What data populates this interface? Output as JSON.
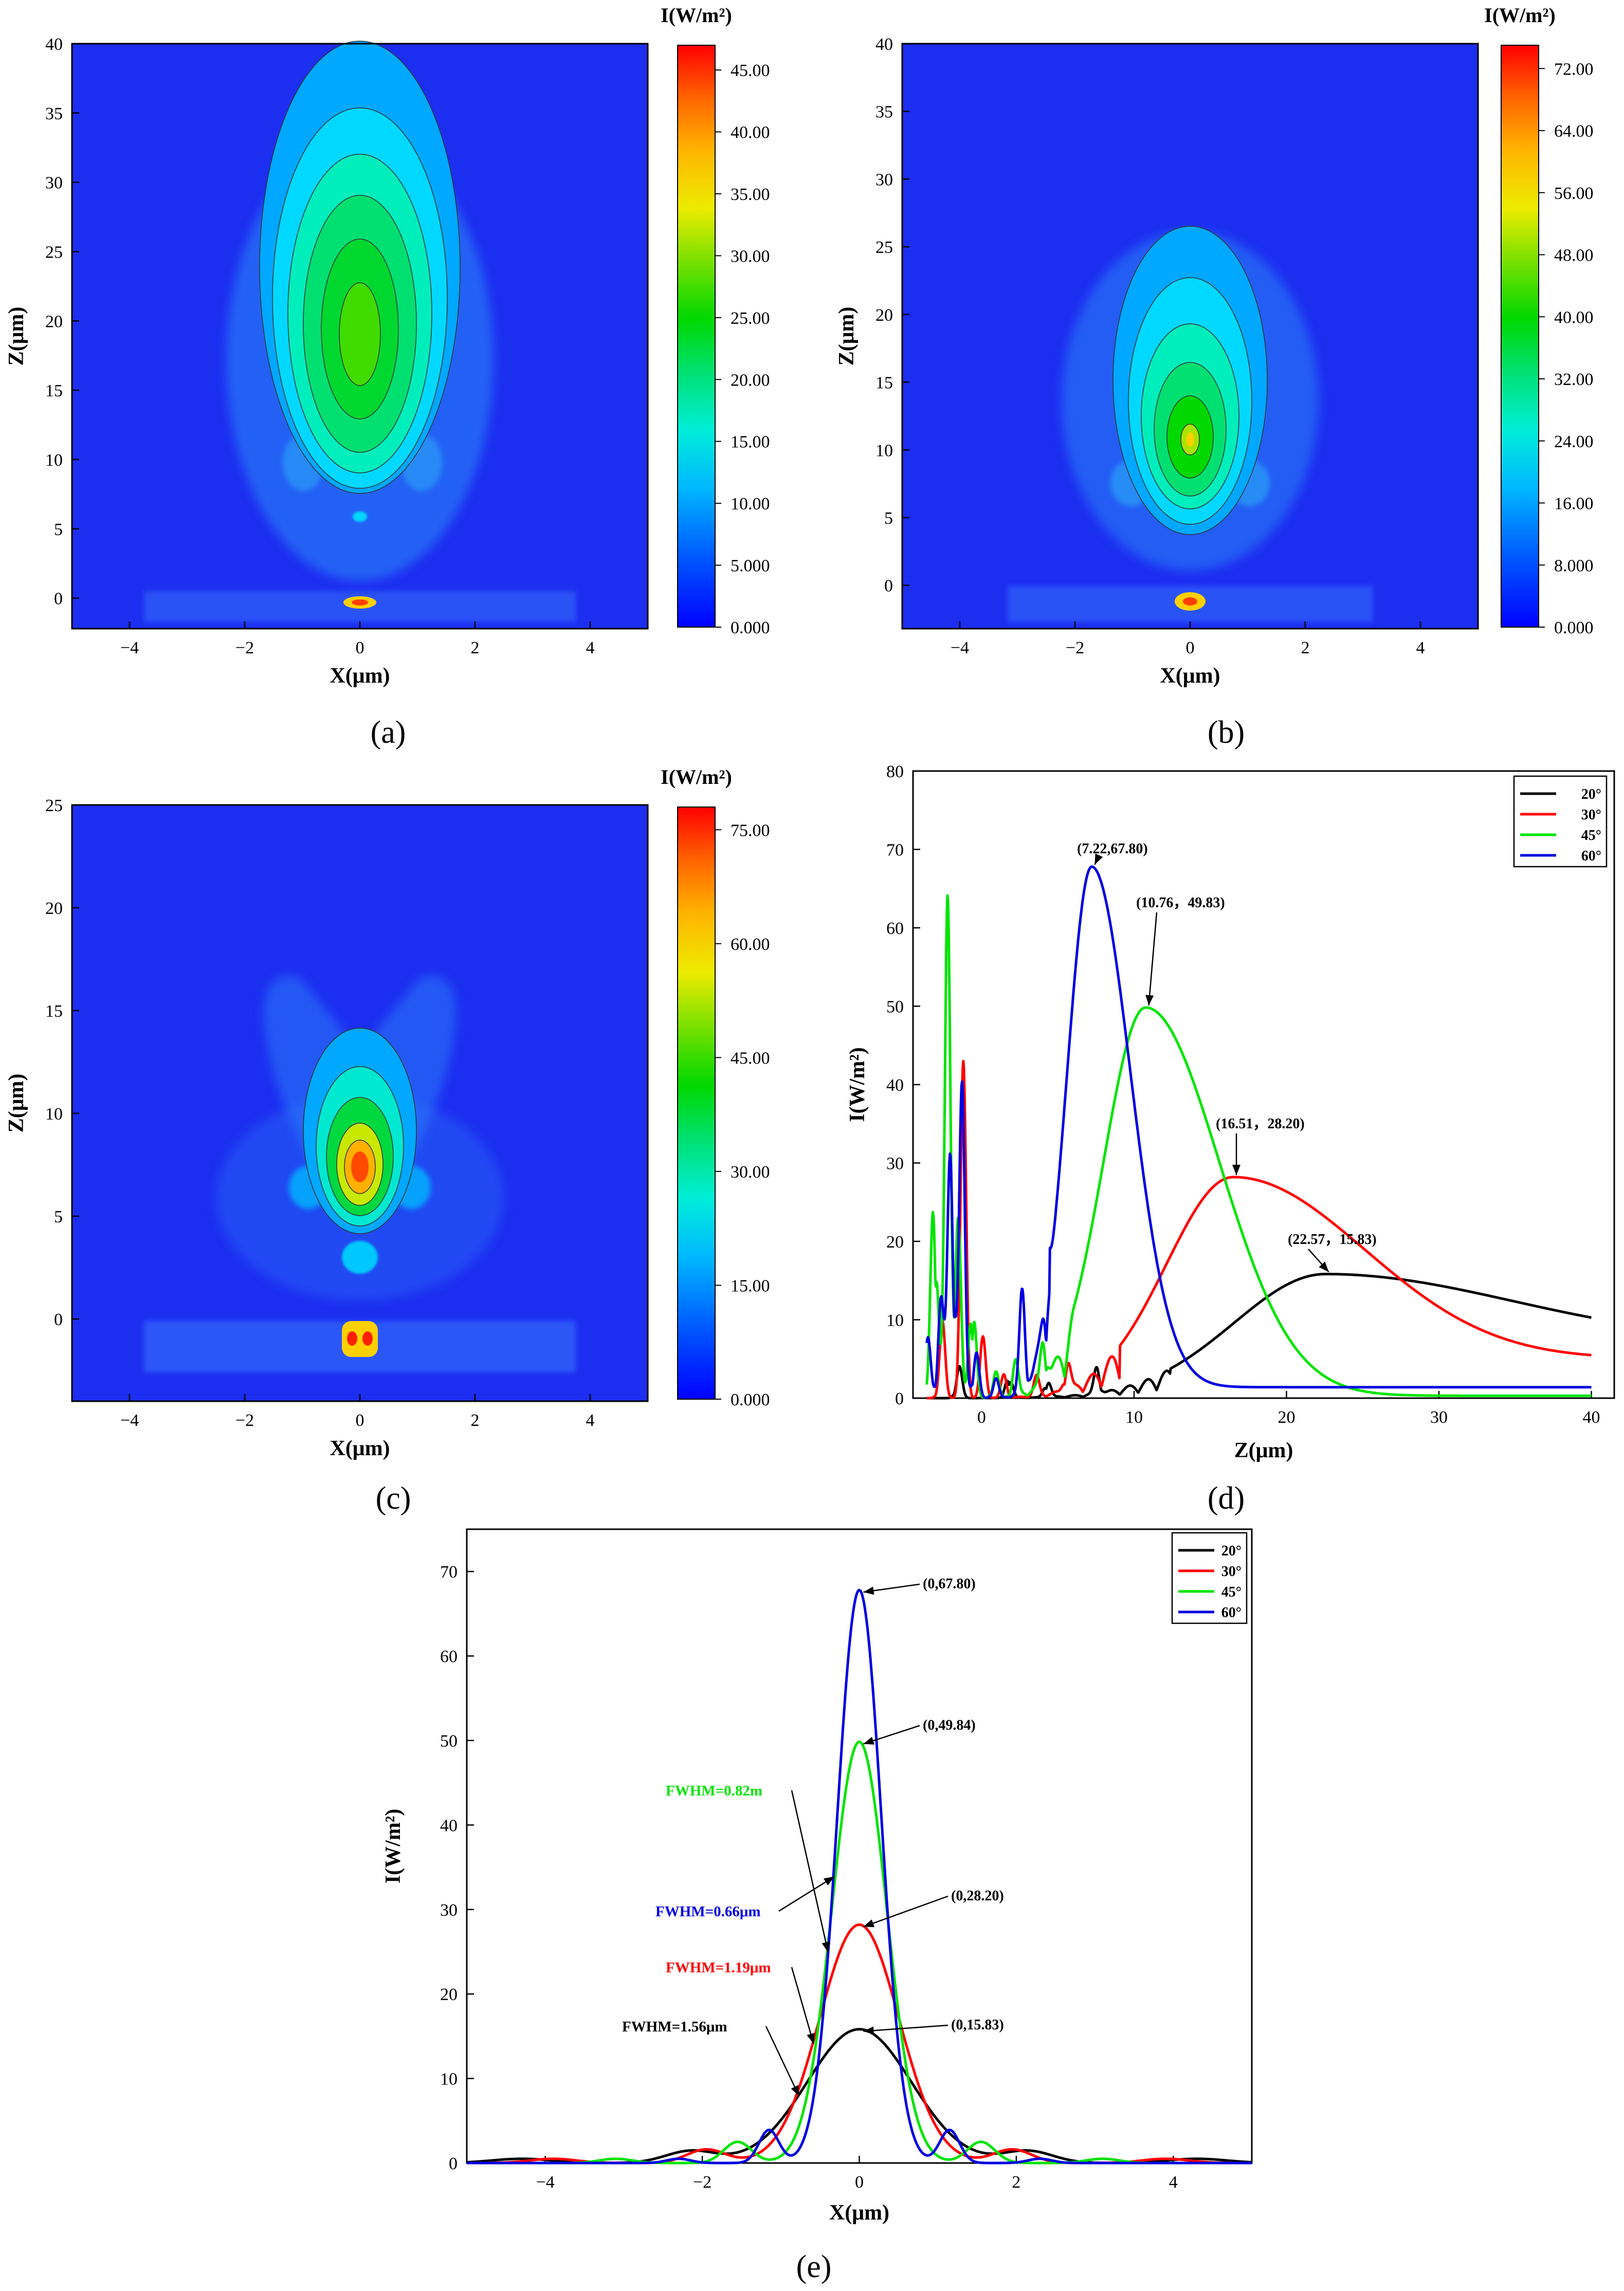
{
  "colors": {
    "axis": "#000000",
    "series_20": "#000000",
    "series_30": "#ff0000",
    "series_45": "#00e400",
    "series_60": "#0000e0",
    "heatmap_background": "#1c2ef0"
  },
  "chart_data": [
    {
      "type": "heatmap",
      "panel_label": "(a)",
      "xlabel": "X(μm)",
      "ylabel": "Z(μm)",
      "xlim": [
        -5,
        5
      ],
      "ylim": [
        -2.2,
        40
      ],
      "xticks": [
        -4,
        -2,
        0,
        2,
        4
      ],
      "yticks": [
        0,
        5,
        10,
        15,
        20,
        25,
        30,
        35,
        40
      ],
      "colorbar_title": "I(W/m²)",
      "colorbar_ticks": [
        "45.00",
        "40.00",
        "35.00",
        "30.00",
        "25.00",
        "20.00",
        "15.00",
        "10.00",
        "5.000",
        "0.000"
      ],
      "colorbar_range": [
        0,
        47
      ],
      "peak_z": 17,
      "peak_intensity": 45
    },
    {
      "type": "heatmap",
      "panel_label": "(b)",
      "xlabel": "X(μm)",
      "ylabel": "Z(μm)",
      "xlim": [
        -5,
        5
      ],
      "ylim": [
        -3.2,
        40
      ],
      "xticks": [
        -4,
        -2,
        0,
        2,
        4
      ],
      "yticks": [
        0,
        5,
        10,
        15,
        20,
        25,
        30,
        35,
        40
      ],
      "colorbar_title": "I(W/m²)",
      "colorbar_ticks": [
        "72.00",
        "64.00",
        "56.00",
        "48.00",
        "40.00",
        "32.00",
        "24.00",
        "16.00",
        "8.000",
        "0.000"
      ],
      "colorbar_range": [
        0,
        75
      ],
      "peak_z": 11,
      "peak_intensity": 50
    },
    {
      "type": "heatmap",
      "panel_label": "(c)",
      "xlabel": "X(μm)",
      "ylabel": "Z(μm)",
      "xlim": [
        -5,
        5
      ],
      "ylim": [
        -4,
        25
      ],
      "xticks": [
        -4,
        -2,
        0,
        2,
        4
      ],
      "yticks": [
        0,
        5,
        10,
        15,
        20,
        25
      ],
      "colorbar_title": "I(W/m²)",
      "colorbar_ticks": [
        "75.00",
        "60.00",
        "45.00",
        "30.00",
        "15.00",
        "0.000"
      ],
      "colorbar_range": [
        0,
        78
      ],
      "peak_z": 7.3,
      "peak_intensity": 68
    },
    {
      "type": "line",
      "panel_label": "(d)",
      "xlabel": "Z(μm)",
      "ylabel": "I(W/m²)",
      "xlim": [
        -4.5,
        41.5
      ],
      "ylim": [
        0,
        80
      ],
      "xticks": [
        0,
        10,
        20,
        30,
        40
      ],
      "yticks": [
        0,
        10,
        20,
        30,
        40,
        50,
        60,
        70,
        80
      ],
      "legend": [
        "20°",
        "30°",
        "45°",
        "60°"
      ],
      "legend_position": "top-right",
      "series": [
        {
          "name": "20°",
          "peak_z": 22.57,
          "peak_value": 15.83,
          "end_value": 7.8
        },
        {
          "name": "30°",
          "peak_z": 16.51,
          "peak_value": 28.2,
          "end_value": 5.1
        },
        {
          "name": "45°",
          "peak_z": 10.76,
          "peak_value": 49.83,
          "end_value": 0.3
        },
        {
          "name": "60°",
          "peak_z": 7.22,
          "peak_value": 67.8,
          "end_value": 1.4
        }
      ],
      "annotations": [
        "(7.22,67.80)",
        "(10.76，49.83)",
        "(16.51，28.20)",
        "(22.57，15.83)"
      ]
    },
    {
      "type": "line",
      "panel_label": "(e)",
      "xlabel": "X(μm)",
      "ylabel": "I(W/m²)",
      "xlim": [
        -5,
        5
      ],
      "ylim": [
        0,
        75
      ],
      "xticks": [
        -4,
        -2,
        0,
        2,
        4
      ],
      "yticks": [
        0,
        10,
        20,
        30,
        40,
        50,
        60,
        70
      ],
      "legend": [
        "20°",
        "30°",
        "45°",
        "60°"
      ],
      "legend_position": "top-right",
      "series": [
        {
          "name": "20°",
          "peak_value": 15.83,
          "fwhm": 1.56
        },
        {
          "name": "30°",
          "peak_value": 28.2,
          "fwhm": 1.19
        },
        {
          "name": "45°",
          "peak_value": 49.84,
          "fwhm": 0.82
        },
        {
          "name": "60°",
          "peak_value": 67.8,
          "fwhm": 0.66
        }
      ],
      "annotations": [
        "(0,67.80)",
        "(0,49.84)",
        "(0,28.20)",
        "(0,15.83)"
      ],
      "fwhm_labels": [
        "FWHM=0.82m",
        "FWHM=0.66μm",
        "FWHM=1.19μm",
        "FWHM=1.56μm"
      ]
    }
  ]
}
